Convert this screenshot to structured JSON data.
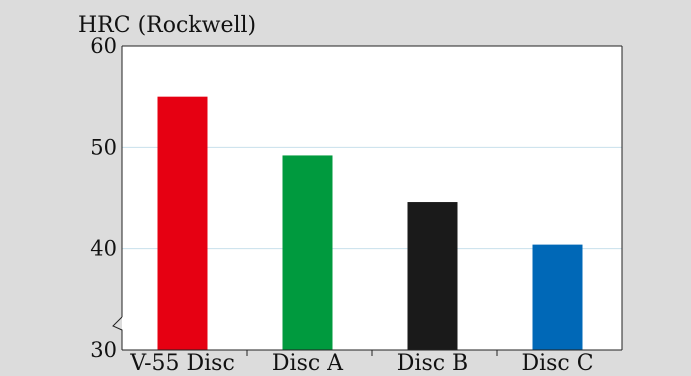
{
  "chart_data": {
    "type": "bar",
    "ylabel": "HRC (Rockwell)",
    "categories": [
      "V-55 Disc",
      "Disc A",
      "Disc B",
      "Disc C"
    ],
    "values": [
      55,
      49.2,
      44.6,
      40.4
    ],
    "ylim": [
      30,
      60
    ],
    "yticks": [
      "30",
      "40",
      "50",
      "60"
    ],
    "grid": true,
    "axis_break": true,
    "colors": [
      "#e60012",
      "#009a3e",
      "#1a1a1a",
      "#0068b7"
    ],
    "background": "#dcdcdc",
    "gridline_color": "#c8e0ec"
  }
}
